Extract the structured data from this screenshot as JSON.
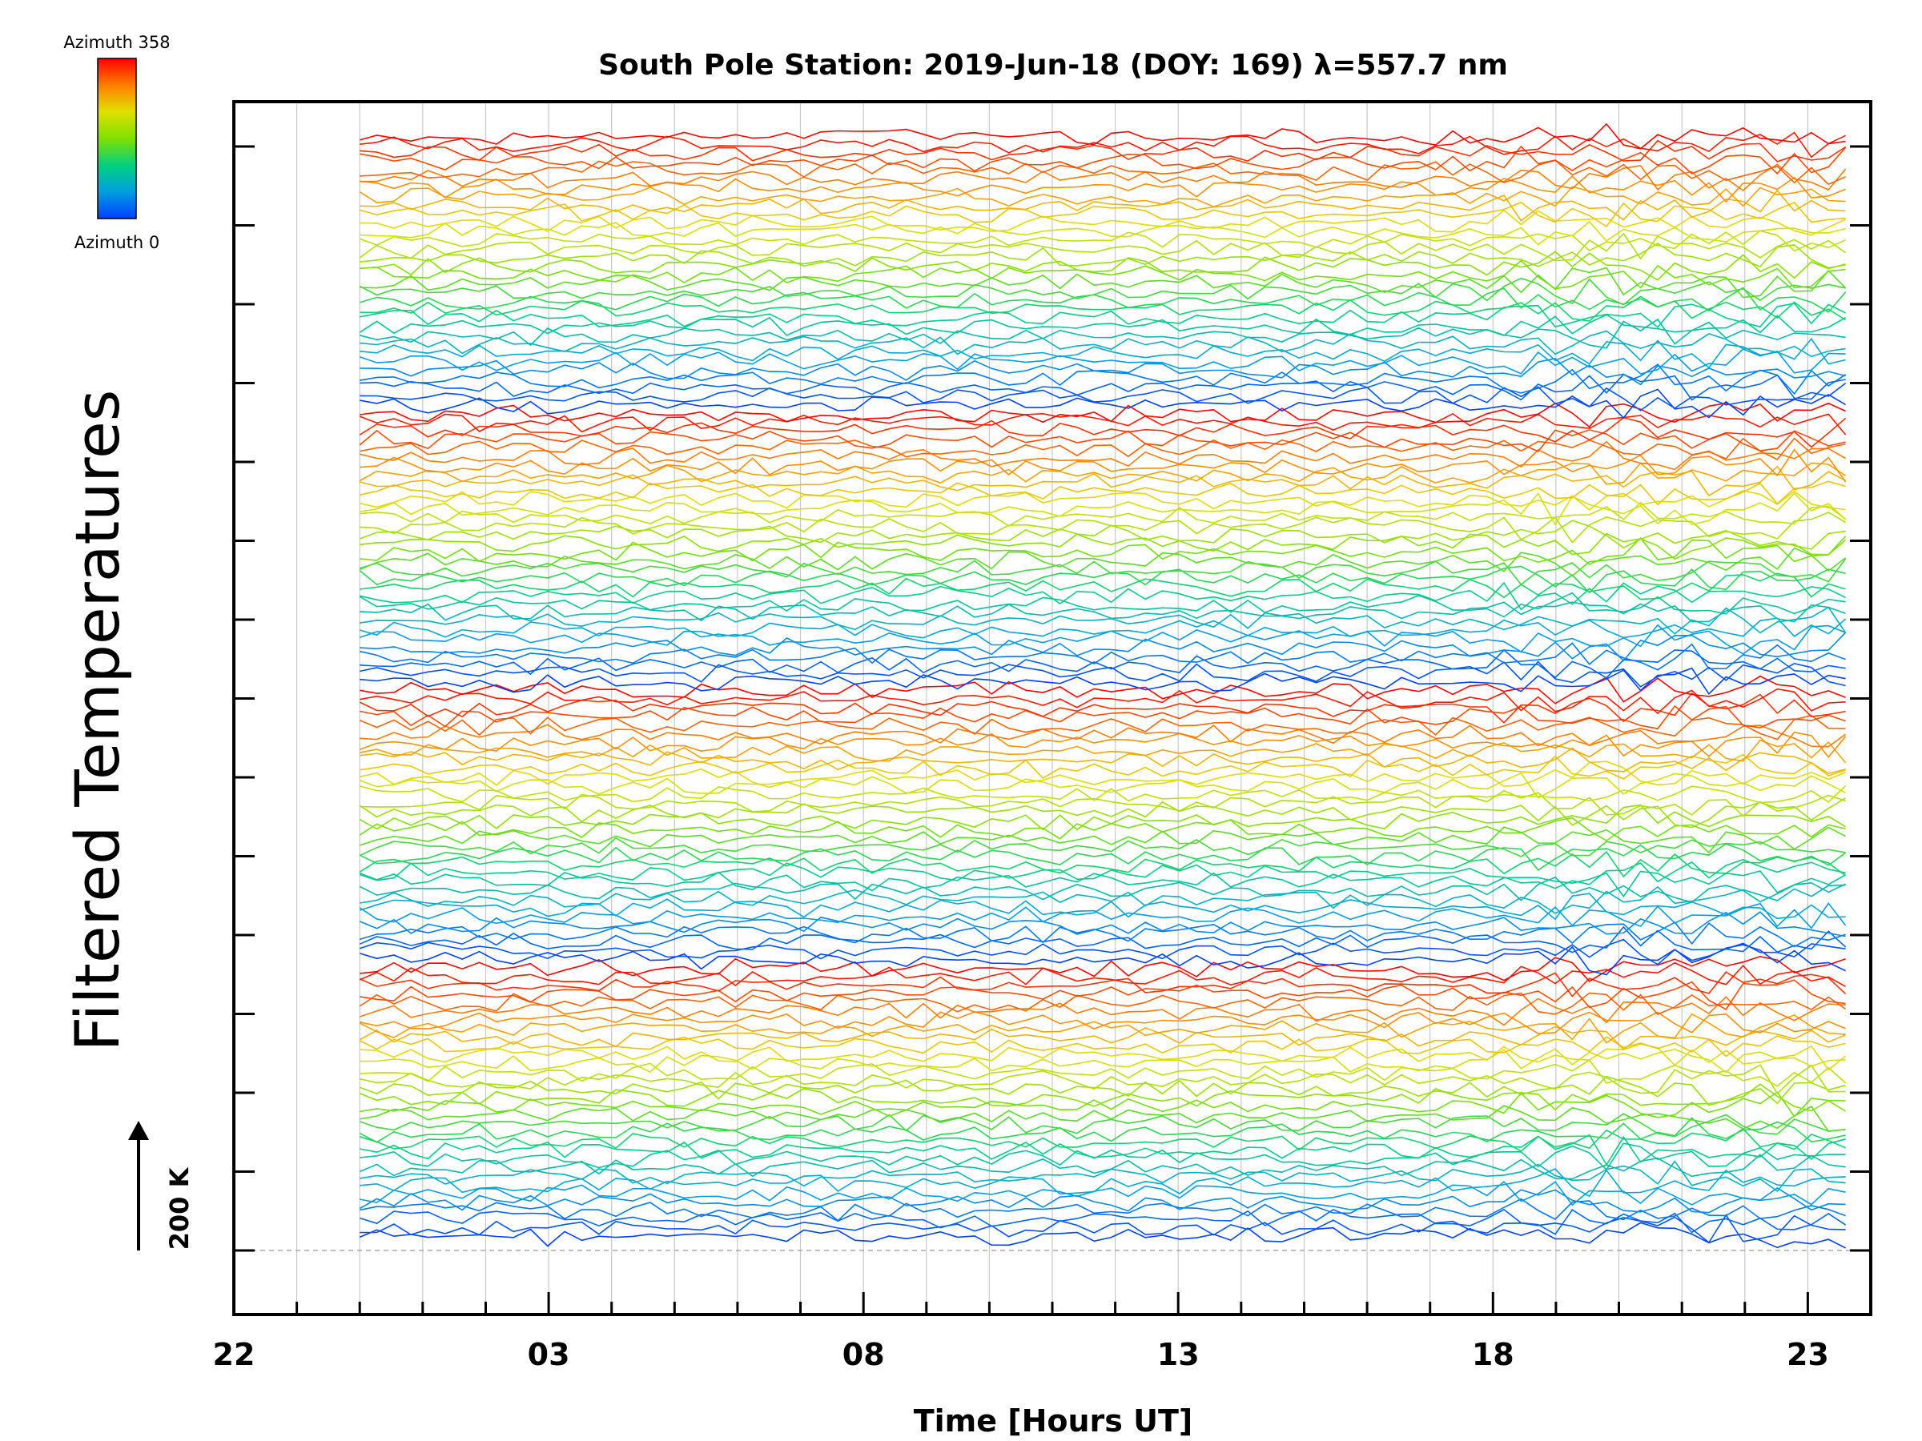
{
  "chart_data": {
    "type": "line",
    "title": "South Pole Station: 2019-Jun-18 (DOY: 169) λ=557.7 nm",
    "xlabel": "Time [Hours UT]",
    "ylabel": "Filtered Temperatures",
    "x_tick_labels": [
      "22",
      "03",
      "08",
      "13",
      "18",
      "23"
    ],
    "x_range_hours_ut": [
      22,
      48
    ],
    "data_start_hour": 24,
    "data_end_hour": 47.6,
    "scale_bar_label": "200 K",
    "legend": {
      "type": "colorbar",
      "placement": "top-left",
      "top_label": "Azimuth 358",
      "bottom_label": "Azimuth 0",
      "colors": [
        "#ff0000",
        "#ff8000",
        "#e0e000",
        "#80e000",
        "#00d080",
        "#00a0e0",
        "#0040ff"
      ]
    },
    "series_count": 128,
    "grid": "vertical"
  }
}
